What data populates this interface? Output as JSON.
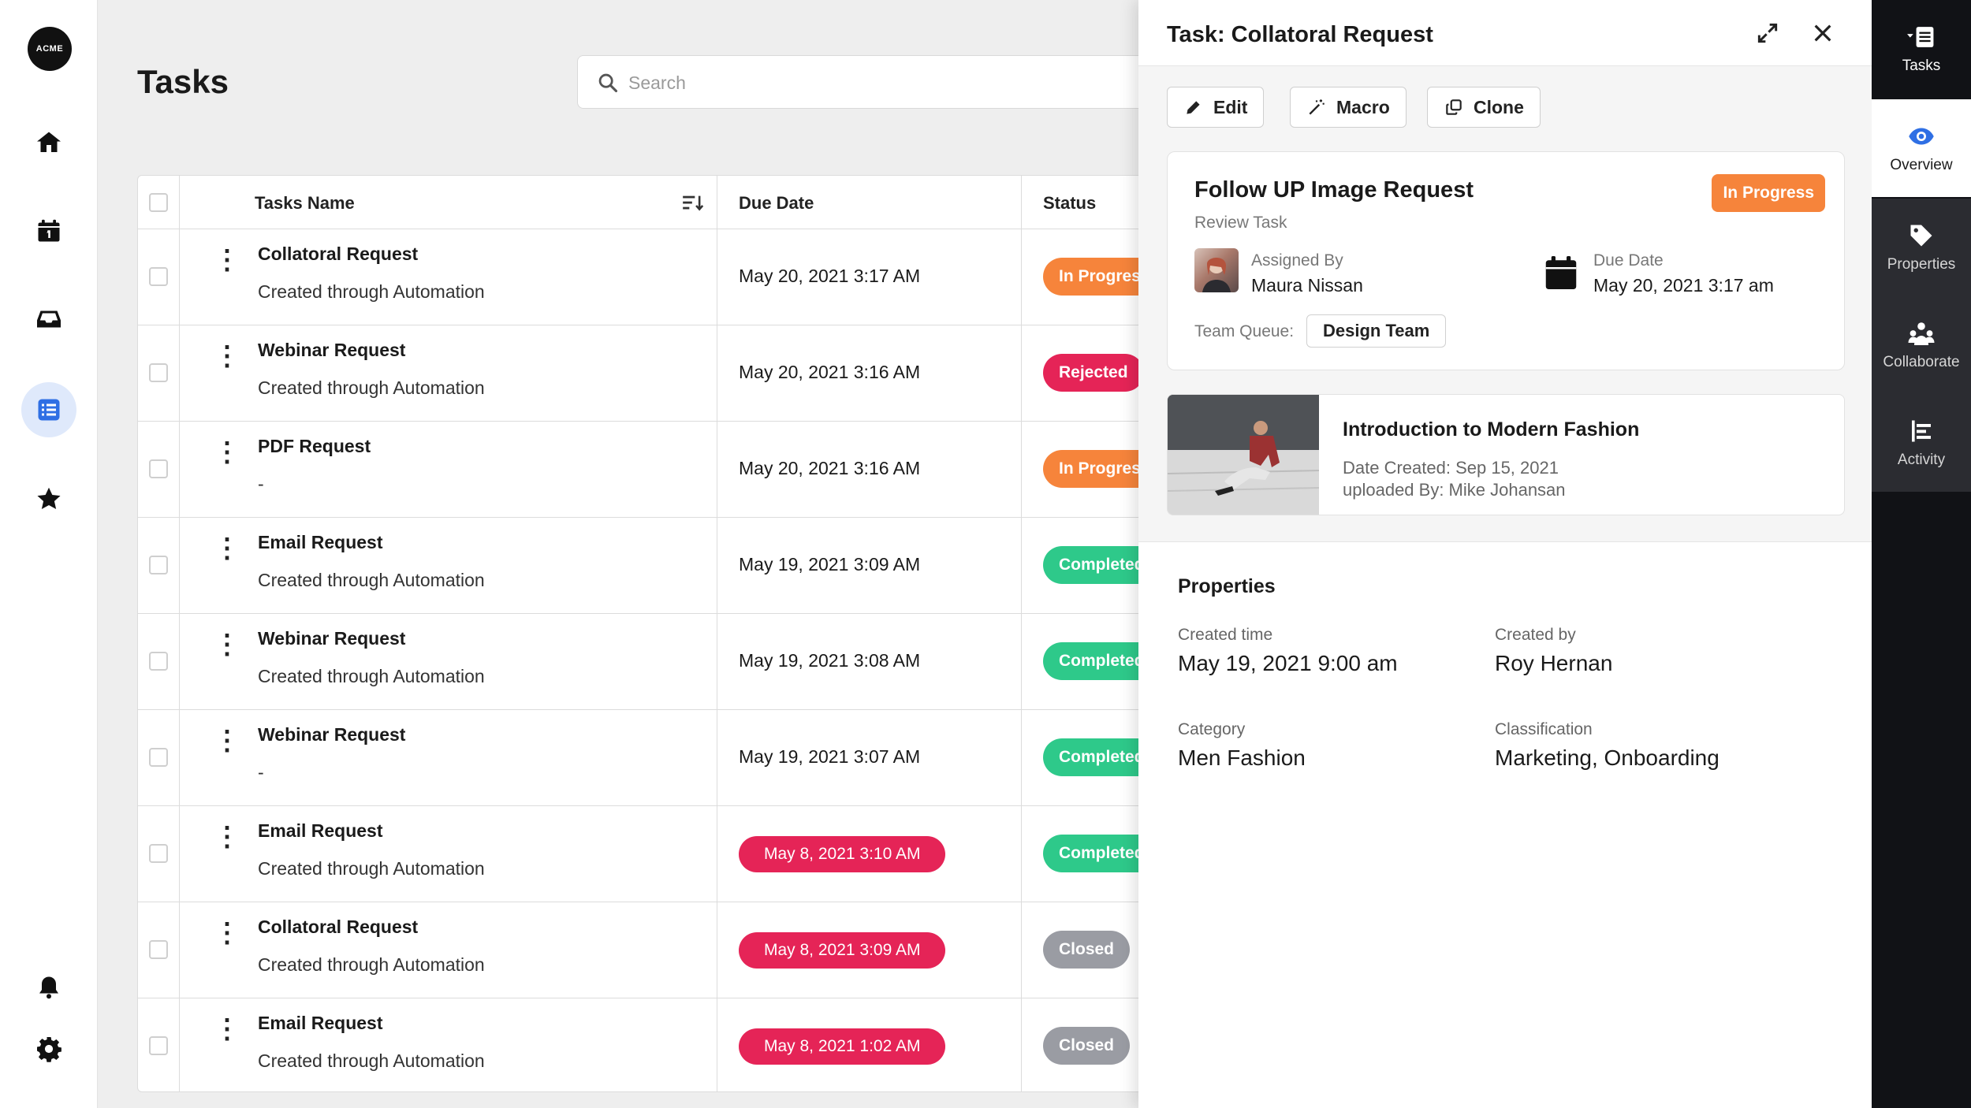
{
  "app": {
    "logo_text": "ACME"
  },
  "nav": {
    "icons": [
      "home-icon",
      "calendar-icon",
      "inbox-icon",
      "tasks-list-icon",
      "star-icon",
      "bell-icon",
      "gear-icon"
    ]
  },
  "page": {
    "title": "Tasks"
  },
  "search": {
    "placeholder": "Search"
  },
  "table": {
    "headers": {
      "name": "Tasks Name",
      "due": "Due Date",
      "status": "Status"
    },
    "rows": [
      {
        "name": "Collatoral Request",
        "sub": "Created through Automation",
        "due": "May 20, 2021 3:17 AM",
        "overdue": false,
        "status": "In Progress",
        "status_color": "#f6843b"
      },
      {
        "name": "Webinar Request",
        "sub": "Created through Automation",
        "due": "May 20, 2021 3:16 AM",
        "overdue": false,
        "status": "Rejected",
        "status_color": "#e52457"
      },
      {
        "name": "PDF Request",
        "sub": "-",
        "due": "May 20, 2021 3:16 AM",
        "overdue": false,
        "status": "In Progress",
        "status_color": "#f6843b"
      },
      {
        "name": "Email Request",
        "sub": "Created through Automation",
        "due": "May 19, 2021 3:09 AM",
        "overdue": false,
        "status": "Completed",
        "status_color": "#2ec98a"
      },
      {
        "name": "Webinar Request",
        "sub": "Created through Automation",
        "due": "May 19, 2021 3:08 AM",
        "overdue": false,
        "status": "Completed",
        "status_color": "#2ec98a"
      },
      {
        "name": "Webinar Request",
        "sub": "-",
        "due": "May 19, 2021 3:07 AM",
        "overdue": false,
        "status": "Completed",
        "status_color": "#2ec98a"
      },
      {
        "name": "Email Request",
        "sub": "Created through Automation",
        "due": "May 8, 2021 3:10 AM",
        "overdue": true,
        "status": "Completed",
        "status_color": "#2ec98a"
      },
      {
        "name": "Collatoral Request",
        "sub": "Created through Automation",
        "due": "May 8, 2021 3:09 AM",
        "overdue": true,
        "status": "Closed",
        "status_color": "#9a9ca3"
      },
      {
        "name": "Email Request",
        "sub": "Created through Automation",
        "due": "May 8, 2021 1:02 AM",
        "overdue": true,
        "status": "Closed",
        "status_color": "#9a9ca3"
      }
    ]
  },
  "panel": {
    "title": "Task: Collatoral Request",
    "buttons": {
      "edit": "Edit",
      "macro": "Macro",
      "clone": "Clone"
    },
    "card": {
      "title": "Follow UP Image Request",
      "subtitle": "Review Task",
      "status": "In Progress",
      "assigned_by_label": "Assigned By",
      "assigned_by": "Maura Nissan",
      "due_label": "Due Date",
      "due": "May 20, 2021 3:17 am",
      "queue_label": "Team Queue:",
      "queue": "Design Team"
    },
    "asset": {
      "title": "Introduction to Modern Fashion",
      "date_created": "Date Created: Sep 15, 2021",
      "uploaded_by": "uploaded By: Mike Johansan"
    },
    "properties": {
      "title": "Properties",
      "created_time_label": "Created time",
      "created_time": "May 19, 2021 9:00 am",
      "created_by_label": "Created by",
      "created_by": "Roy Hernan",
      "category_label": "Category",
      "category": "Men Fashion",
      "classification_label": "Classification",
      "classification": "Marketing, Onboarding"
    }
  },
  "rail": {
    "tasks": "Tasks",
    "overview": "Overview",
    "properties": "Properties",
    "collaborate": "Collaborate",
    "activity": "Activity"
  },
  "colors": {
    "accent": "#2f6fe4",
    "overdue": "#e52457",
    "in_progress": "#f6843b",
    "completed": "#2ec98a",
    "closed": "#9a9ca3"
  }
}
